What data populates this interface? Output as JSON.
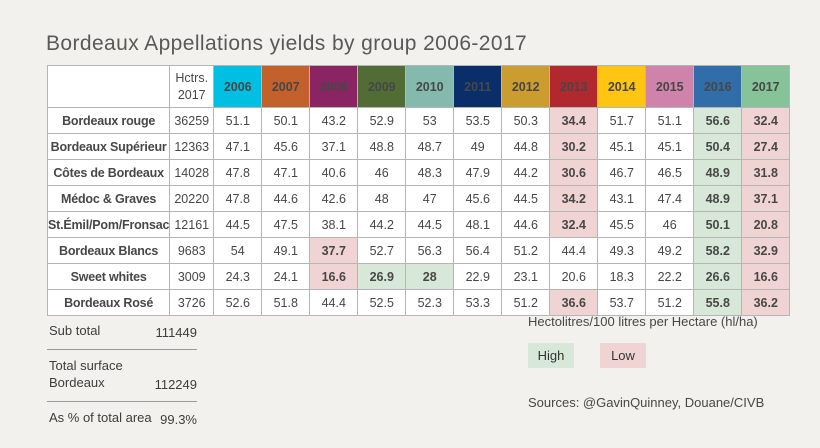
{
  "page": {
    "background": "#f2f1ee"
  },
  "chart_data": {
    "type": "table",
    "title": "Bordeaux Appellations yields by group 2006-2017",
    "hectares_header": "Hctrs. 2017",
    "years": [
      "2006",
      "2007",
      "2008",
      "2009",
      "2010",
      "2011",
      "2012",
      "2013",
      "2014",
      "2015",
      "2016",
      "2017"
    ],
    "year_colors": [
      "#00bfe2",
      "#c2612b",
      "#8b2462",
      "#516d35",
      "#84b9ae",
      "#0a2e6a",
      "#cb9c2f",
      "#b1292f",
      "#fec613",
      "#d083aa",
      "#306da9",
      "#86c398"
    ],
    "highlight_colors": {
      "high": "#d8e8d8",
      "low": "#f0d4d3"
    },
    "rows": [
      {
        "label": "Bordeaux rouge",
        "hectares": "36259",
        "values": [
          "51.1",
          "50.1",
          "43.2",
          "52.9",
          "53",
          "53.5",
          "50.3",
          "34.4",
          "51.7",
          "51.1",
          "56.6",
          "32.4"
        ],
        "hl": [
          "",
          "",
          "",
          "",
          "",
          "",
          "",
          "low",
          "",
          "",
          "high",
          "low"
        ]
      },
      {
        "label": "Bordeaux Supérieur",
        "hectares": "12363",
        "values": [
          "47.1",
          "45.6",
          "37.1",
          "48.8",
          "48.7",
          "49",
          "44.8",
          "30.2",
          "45.1",
          "45.1",
          "50.4",
          "27.4"
        ],
        "hl": [
          "",
          "",
          "",
          "",
          "",
          "",
          "",
          "low",
          "",
          "",
          "high",
          "low"
        ]
      },
      {
        "label": "Côtes de Bordeaux",
        "hectares": "14028",
        "values": [
          "47.8",
          "47.1",
          "40.6",
          "46",
          "48.3",
          "47.9",
          "44.2",
          "30.6",
          "46.7",
          "46.5",
          "48.9",
          "31.8"
        ],
        "hl": [
          "",
          "",
          "",
          "",
          "",
          "",
          "",
          "low",
          "",
          "",
          "high",
          "low"
        ]
      },
      {
        "label": "Médoc & Graves",
        "hectares": "20220",
        "values": [
          "47.8",
          "44.6",
          "42.6",
          "48",
          "47",
          "45.6",
          "44.5",
          "34.2",
          "43.1",
          "47.4",
          "48.9",
          "37.1"
        ],
        "hl": [
          "",
          "",
          "",
          "",
          "",
          "",
          "",
          "low",
          "",
          "",
          "high",
          "low"
        ]
      },
      {
        "label": "St.Émil/Pom/Fronsac",
        "hectares": "12161",
        "values": [
          "44.5",
          "47.5",
          "38.1",
          "44.2",
          "44.5",
          "48.1",
          "44.6",
          "32.4",
          "45.5",
          "46",
          "50.1",
          "20.8"
        ],
        "hl": [
          "",
          "",
          "",
          "",
          "",
          "",
          "",
          "low",
          "",
          "",
          "high",
          "low"
        ]
      },
      {
        "label": "Bordeaux Blancs",
        "hectares": "9683",
        "values": [
          "54",
          "49.1",
          "37.7",
          "52.7",
          "56.3",
          "56.4",
          "51.2",
          "44.4",
          "49.3",
          "49.2",
          "58.2",
          "32.9"
        ],
        "hl": [
          "",
          "",
          "low",
          "",
          "",
          "",
          "",
          "",
          "",
          "",
          "high",
          "low"
        ]
      },
      {
        "label": "Sweet whites",
        "hectares": "3009",
        "values": [
          "24.3",
          "24.1",
          "16.6",
          "26.9",
          "28",
          "22.9",
          "23.1",
          "20.6",
          "18.3",
          "22.2",
          "26.6",
          "16.6"
        ],
        "hl": [
          "",
          "",
          "low",
          "high",
          "high",
          "",
          "",
          "",
          "",
          "",
          "high",
          "low"
        ]
      },
      {
        "label": "Bordeaux Rosé",
        "hectares": "3726",
        "values": [
          "52.6",
          "51.8",
          "44.4",
          "52.5",
          "52.3",
          "53.3",
          "51.2",
          "36.6",
          "53.7",
          "51.2",
          "55.8",
          "36.2"
        ],
        "hl": [
          "",
          "",
          "",
          "",
          "",
          "",
          "",
          "low",
          "",
          "",
          "high",
          "low"
        ]
      }
    ]
  },
  "totals": [
    {
      "label": "Sub total",
      "value": "111449"
    },
    {
      "label": "Total surface Bordeaux",
      "value": "112249"
    },
    {
      "label": "As % of total area",
      "value": "99.3%"
    }
  ],
  "legend": {
    "unit": "Hectolitres/100 litres per Hectare (hl/ha)",
    "high_label": "High",
    "low_label": "Low",
    "sources": "Sources: @GavinQuinney, Douane/CIVB"
  }
}
